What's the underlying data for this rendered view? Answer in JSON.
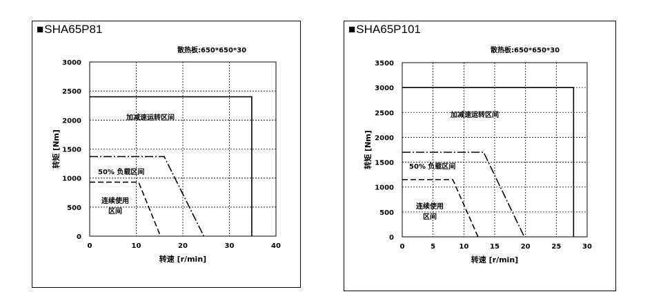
{
  "charts": [
    {
      "title": "SHA65P81",
      "note": "散热板:650*650*30",
      "xlabel": "转速 [r/min]",
      "ylabel": "转矩 [Nm]",
      "xlim": [
        0,
        40
      ],
      "ylim": [
        0,
        3000
      ],
      "xticks": [
        0,
        10,
        20,
        30,
        40
      ],
      "yticks": [
        0,
        500,
        1000,
        1500,
        2000,
        2500,
        3000
      ],
      "regions": [
        {
          "label": "加减速运转区间",
          "style": "solid",
          "points": [
            [
              0,
              2400
            ],
            [
              34.8,
              2400
            ],
            [
              34.8,
              0
            ]
          ]
        },
        {
          "label": "50% 负载区间",
          "style": "dashdot",
          "points": [
            [
              0,
              1370
            ],
            [
              16,
              1370
            ],
            [
              24.5,
              0
            ]
          ]
        },
        {
          "label": "连续使用\n区间",
          "style": "dashed",
          "points": [
            [
              0,
              930
            ],
            [
              10.5,
              930
            ],
            [
              15.2,
              0
            ]
          ]
        }
      ]
    },
    {
      "title": "SHA65P101",
      "note": "散热板:650*650*30",
      "xlabel": "转速 [r/min]",
      "ylabel": "转矩 [Nm]",
      "xlim": [
        0,
        30
      ],
      "ylim": [
        0,
        3500
      ],
      "xticks": [
        0,
        5,
        10,
        15,
        20,
        25,
        30
      ],
      "yticks": [
        0,
        500,
        1000,
        1500,
        2000,
        2500,
        3000,
        3500
      ],
      "regions": [
        {
          "label": "加减速运转区间",
          "style": "solid",
          "points": [
            [
              0,
              3000
            ],
            [
              27.8,
              3000
            ],
            [
              27.8,
              0
            ]
          ]
        },
        {
          "label": "50% 负载区间",
          "style": "dashdot",
          "points": [
            [
              0,
              1700
            ],
            [
              13.2,
              1700
            ],
            [
              19.8,
              0
            ]
          ]
        },
        {
          "label": "连续使用\n区间",
          "style": "dashed",
          "points": [
            [
              0,
              1150
            ],
            [
              8.2,
              1150
            ],
            [
              12.3,
              0
            ]
          ]
        }
      ]
    }
  ],
  "chart_data": [
    {
      "type": "line",
      "title": "SHA65P81",
      "xlabel": "转速 [r/min]",
      "ylabel": "转矩 [Nm]",
      "xlim": [
        0,
        40
      ],
      "ylim": [
        0,
        3000
      ],
      "grid": true,
      "series": [
        {
          "name": "加减速运转区间",
          "x": [
            0,
            34.8,
            34.8
          ],
          "y": [
            2400,
            2400,
            0
          ]
        },
        {
          "name": "50% 负载区间",
          "x": [
            0,
            16,
            24.5
          ],
          "y": [
            1370,
            1370,
            0
          ]
        },
        {
          "name": "连续使用区间",
          "x": [
            0,
            10.5,
            15.2
          ],
          "y": [
            930,
            930,
            0
          ]
        }
      ]
    },
    {
      "type": "line",
      "title": "SHA65P101",
      "xlabel": "转速 [r/min]",
      "ylabel": "转矩 [Nm]",
      "xlim": [
        0,
        30
      ],
      "ylim": [
        0,
        3500
      ],
      "grid": true,
      "series": [
        {
          "name": "加减速运转区间",
          "x": [
            0,
            27.8,
            27.8
          ],
          "y": [
            3000,
            3000,
            0
          ]
        },
        {
          "name": "50% 负载区间",
          "x": [
            0,
            13.2,
            19.8
          ],
          "y": [
            1700,
            1700,
            0
          ]
        },
        {
          "name": "连续使用区间",
          "x": [
            0,
            8.2,
            12.3
          ],
          "y": [
            1150,
            1150,
            0
          ]
        }
      ]
    }
  ]
}
